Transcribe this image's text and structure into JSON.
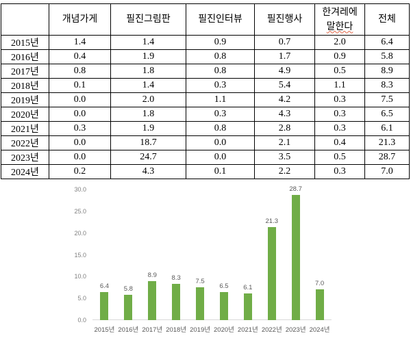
{
  "table": {
    "corner_label": "",
    "columns": [
      {
        "lines": [
          "개념가게"
        ]
      },
      {
        "lines": [
          "필진그림판"
        ]
      },
      {
        "lines": [
          "필진인터뷰"
        ]
      },
      {
        "lines": [
          "필진행사"
        ]
      },
      {
        "lines": [
          "한겨레에",
          "말한다"
        ],
        "squiggle_line": 1
      },
      {
        "lines": [
          "전체"
        ]
      }
    ],
    "rows": [
      {
        "year": "2015년",
        "values": [
          "1.4",
          "1.4",
          "0.9",
          "0.7",
          "2.0",
          "6.4"
        ]
      },
      {
        "year": "2016년",
        "values": [
          "0.4",
          "1.9",
          "0.8",
          "1.7",
          "0.9",
          "5.8"
        ]
      },
      {
        "year": "2017년",
        "values": [
          "0.8",
          "1.8",
          "0.8",
          "4.9",
          "0.5",
          "8.9"
        ]
      },
      {
        "year": "2018년",
        "values": [
          "0.1",
          "1.4",
          "0.3",
          "5.4",
          "1.1",
          "8.3"
        ]
      },
      {
        "year": "2019년",
        "values": [
          "0.0",
          "2.0",
          "1.1",
          "4.2",
          "0.3",
          "7.5"
        ]
      },
      {
        "year": "2020년",
        "values": [
          "0.0",
          "1.8",
          "0.3",
          "4.3",
          "0.3",
          "6.5"
        ]
      },
      {
        "year": "2021년",
        "values": [
          "0.3",
          "1.9",
          "0.8",
          "2.8",
          "0.3",
          "6.1"
        ]
      },
      {
        "year": "2022년",
        "values": [
          "0.0",
          "18.7",
          "0.0",
          "2.1",
          "0.4",
          "21.3"
        ]
      },
      {
        "year": "2023년",
        "values": [
          "0.0",
          "24.7",
          "0.0",
          "3.5",
          "0.5",
          "28.7"
        ]
      },
      {
        "year": "2024년",
        "values": [
          "0.2",
          "4.3",
          "0.1",
          "2.2",
          "0.3",
          "7.0"
        ]
      }
    ]
  },
  "chart_data": {
    "type": "bar",
    "categories": [
      "2015년",
      "2016년",
      "2017년",
      "2018년",
      "2019년",
      "2020년",
      "2021년",
      "2022년",
      "2023년",
      "2024년"
    ],
    "values": [
      6.4,
      5.8,
      8.9,
      8.3,
      7.5,
      6.5,
      6.1,
      21.3,
      28.7,
      7.0
    ],
    "data_labels": [
      "6.4",
      "5.8",
      "8.9",
      "8.3",
      "7.5",
      "6.5",
      "6.1",
      "21.3",
      "28.7",
      "7.0"
    ],
    "title": "",
    "xlabel": "",
    "ylabel": "",
    "ylim": [
      0,
      30
    ],
    "y_ticks": [
      "0.0",
      "5.0",
      "10.0",
      "15.0",
      "20.0",
      "25.0",
      "30.0"
    ],
    "grid": false,
    "legend": false,
    "bar_color": "#70AD47",
    "tick_label_color": "#7f7f7f",
    "data_label_color": "#595959",
    "axis_line_color": "#d9d9d9"
  }
}
